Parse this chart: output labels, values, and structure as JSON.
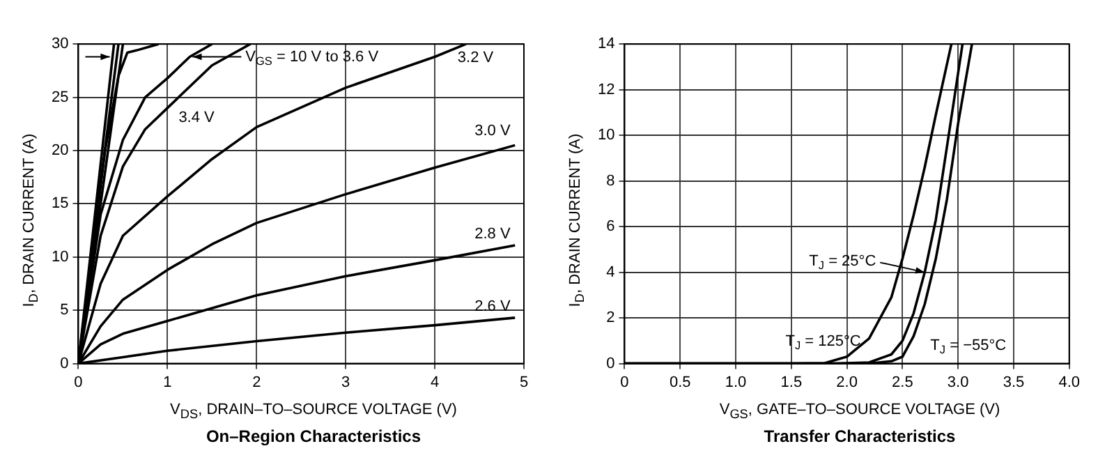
{
  "chart_data": [
    {
      "type": "line",
      "title": "On–Region Characteristics",
      "xlabel": "V$_{DS}$, DRAIN–TO–SOURCE VOLTAGE (V)",
      "ylabel": "I$_{D}$, DRAIN CURRENT (A)",
      "xlim": [
        0,
        5
      ],
      "ylim": [
        0,
        30
      ],
      "xticks": [
        0,
        1,
        2,
        3,
        4,
        5
      ],
      "yticks": [
        0,
        5,
        10,
        15,
        20,
        25,
        30
      ],
      "grid": true,
      "marker": "none",
      "series": [
        {
          "color": "#000000",
          "x": [
            0,
            0.2,
            0.4
          ],
          "values": [
            0,
            15,
            30
          ]
        },
        {
          "color": "#000000",
          "x": [
            0,
            0.22,
            0.45
          ],
          "values": [
            0,
            15,
            30
          ]
        },
        {
          "color": "#000000",
          "x": [
            0,
            0.25,
            0.5
          ],
          "values": [
            0,
            15,
            30
          ]
        },
        {
          "color": "#000000",
          "x": [
            0,
            0.3,
            0.45,
            0.55,
            0.65,
            0.9
          ],
          "values": [
            0,
            20,
            27,
            29.2,
            29.4,
            30
          ]
        },
        {
          "color": "#000000",
          "x": [
            0,
            0.25,
            0.5,
            0.75,
            1,
            1.25,
            1.5
          ],
          "values": [
            0,
            14,
            21,
            25,
            26.8,
            28.8,
            30
          ]
        },
        {
          "name": "3.4 V",
          "color": "#000000",
          "x": [
            0,
            0.25,
            0.5,
            0.75,
            1,
            1.5,
            1.93
          ],
          "values": [
            0,
            12,
            18.5,
            22,
            24,
            28,
            30
          ]
        },
        {
          "name": "3.2 V",
          "color": "#000000",
          "x": [
            0,
            0.25,
            0.5,
            1,
            1.5,
            2,
            3,
            4,
            4.35
          ],
          "values": [
            0,
            7.5,
            12,
            15.7,
            19.2,
            22.2,
            25.9,
            28.8,
            30
          ]
        },
        {
          "name": "3.0 V",
          "color": "#000000",
          "x": [
            0,
            0.25,
            0.5,
            1,
            1.5,
            2,
            3,
            4,
            4.9
          ],
          "values": [
            0,
            3.5,
            6,
            8.8,
            11.2,
            13.2,
            15.9,
            18.4,
            20.5
          ]
        },
        {
          "name": "2.8 V",
          "color": "#000000",
          "x": [
            0,
            0.25,
            0.5,
            1,
            2,
            3,
            4,
            4.9
          ],
          "values": [
            0,
            1.8,
            2.8,
            4,
            6.4,
            8.2,
            9.7,
            11.1
          ]
        },
        {
          "name": "2.6 V",
          "color": "#000000",
          "x": [
            0,
            0.5,
            1,
            2,
            3,
            4,
            4.9
          ],
          "values": [
            0,
            0.6,
            1.2,
            2.1,
            2.9,
            3.6,
            4.3
          ]
        }
      ],
      "annotations": [
        "V$_{GS}$ = 10 V to 3.6 V"
      ]
    },
    {
      "type": "line",
      "title": "Transfer Characteristics",
      "xlabel": "V$_{GS}$, GATE–TO–SOURCE VOLTAGE (V)",
      "ylabel": "I$_{D}$, DRAIN CURRENT (A)",
      "xlim": [
        0,
        4
      ],
      "ylim": [
        0,
        14
      ],
      "xticks": [
        0,
        0.5,
        {
          "value": 1,
          "label": "1.0"
        },
        1.5,
        {
          "value": 2,
          "label": "2.0"
        },
        2.5,
        {
          "value": 3,
          "label": "3.0"
        },
        3.5,
        {
          "value": 4,
          "label": "4.0"
        }
      ],
      "yticks": [
        0,
        2,
        4,
        6,
        8,
        10,
        12,
        14
      ],
      "grid": true,
      "marker": "none",
      "series": [
        {
          "name": "T$_{J}$ = 125°C",
          "color": "#000000",
          "x": [
            0,
            1.5,
            1.8,
            2,
            2.2,
            2.4,
            2.5,
            2.6,
            2.7,
            2.8,
            2.94
          ],
          "values": [
            0,
            0,
            0.02,
            0.3,
            1.1,
            2.9,
            4.6,
            6.5,
            8.6,
            10.9,
            14
          ]
        },
        {
          "name": "T$_{J}$ = 25°C",
          "color": "#000000",
          "x": [
            0,
            1.9,
            2.2,
            2.4,
            2.5,
            2.6,
            2.7,
            2.8,
            2.9,
            3.04
          ],
          "values": [
            0,
            0,
            0.05,
            0.4,
            1,
            2.2,
            4,
            6.3,
            9.5,
            14
          ]
        },
        {
          "name": "T$_{J}$ = −55°C",
          "color": "#000000",
          "x": [
            0,
            2.2,
            2.4,
            2.5,
            2.6,
            2.7,
            2.8,
            2.9,
            3,
            3.125
          ],
          "values": [
            0,
            0,
            0.1,
            0.3,
            1.2,
            2.6,
            4.6,
            7.2,
            10.5,
            14
          ]
        }
      ]
    }
  ]
}
